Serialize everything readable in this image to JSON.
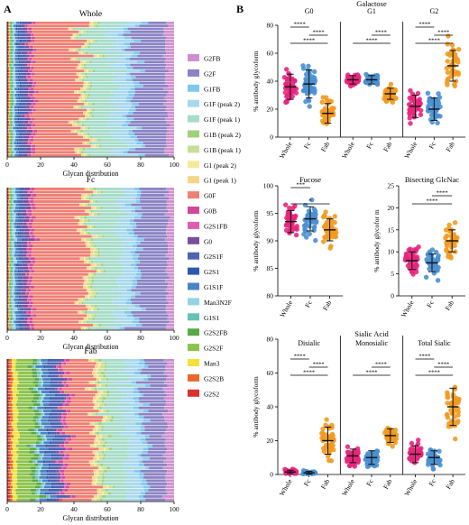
{
  "panel_labels": {
    "a": "A",
    "b": "B"
  },
  "colors": {
    "G2FB": "#cf8fcf",
    "G2F": "#8a83c4",
    "G1FB": "#7fc8ee",
    "G1F (peak 2)": "#a8d8ee",
    "G1F (peak 1)": "#a6dcc8",
    "G1B (peak 2)": "#9fd07a",
    "G1B (peak 1)": "#c7df93",
    "G1 (peak 2)": "#f6ea9a",
    "G1 (peak 1)": "#f4d688",
    "G0F": "#ee7f74",
    "G0B": "#d2479a",
    "G2S1FB": "#e05cb4",
    "G0": "#7a4f9a",
    "G2S1F": "#4a63b3",
    "G2S1": "#2f58ad",
    "G1S1F": "#4b84c4",
    "Man3N2F": "#93d3e6",
    "G1S1": "#66c2b5",
    "G2S2FB": "#5aa845",
    "G2S2F": "#8bc34a",
    "Man3": "#f3e03a",
    "G2S2B": "#e9672e",
    "G2S2": "#d92f2f",
    "whole": "#e8267c",
    "fc": "#4a90d2",
    "fab": "#f29a1f",
    "bar": "#111111"
  },
  "chart_data": [
    {
      "type": "bar",
      "orientation": "horizontal",
      "stacked": true,
      "title": "Whole",
      "xlabel": "Glycan distribution",
      "ylabel": "",
      "xlim": [
        0,
        100
      ],
      "xticks": [
        "0",
        "20",
        "40",
        "60",
        "80",
        "100"
      ],
      "rows": 45,
      "mean_percent_composition": {
        "G2S2": 0.7,
        "G2S2B": 0.4,
        "Man3": 0.2,
        "G2S2F": 0.8,
        "G2S2FB": 0.5,
        "G1S1": 0.7,
        "Man3N2F": 1.2,
        "G1S1F": 1.7,
        "G2S1": 0.8,
        "G2S1F": 3.2,
        "G0": 2.6,
        "G2S1FB": 0.8,
        "G0B": 1.6,
        "G0F": 27.4,
        "G1 (peak 1)": 1.6,
        "G1 (peak 2)": 0.8,
        "G1B (peak 1)": 2.0,
        "G1B (peak 2)": 1.0,
        "G1F (peak 1)": 14.5,
        "G1F (peak 2)": 8.0,
        "G1FB": 3.2,
        "G2F": 18.0,
        "G2FB": 4.4
      }
    },
    {
      "type": "bar",
      "orientation": "horizontal",
      "stacked": true,
      "title": "Fc",
      "xlabel": "Glycan distribution",
      "ylabel": "",
      "xlim": [
        0,
        100
      ],
      "xticks": [
        "0",
        "20",
        "40",
        "60",
        "80",
        "100"
      ],
      "rows": 45,
      "mean_percent_composition": {
        "G2S2": 0.6,
        "G2S2B": 0.4,
        "Man3": 0.2,
        "G2S2F": 0.6,
        "G2S2FB": 0.4,
        "G1S1": 0.8,
        "Man3N2F": 1.5,
        "G1S1F": 1.9,
        "G2S1": 0.6,
        "G2S1F": 2.3,
        "G0": 2.9,
        "G2S1FB": 0.9,
        "G0B": 1.7,
        "G0F": 29.8,
        "G1 (peak 1)": 1.7,
        "G1 (peak 2)": 0.8,
        "G1B (peak 1)": 2.1,
        "G1B (peak 2)": 1.0,
        "G1F (peak 1)": 15.0,
        "G1F (peak 2)": 7.5,
        "G1FB": 3.0,
        "G2F": 17.0,
        "G2FB": 4.1
      }
    },
    {
      "type": "bar",
      "orientation": "horizontal",
      "stacked": true,
      "title": "Fab",
      "xlabel": "Glycan distribution",
      "ylabel": "",
      "xlim": [
        0,
        100
      ],
      "xticks": [
        "0",
        "20",
        "40",
        "60",
        "80",
        "100"
      ],
      "rows": 45,
      "mean_percent_composition": {
        "G2S2": 1.5,
        "G2S2B": 1.5,
        "Man3": 3.0,
        "G2S2F": 9.0,
        "G2S2FB": 3.0,
        "G1S1": 1.5,
        "Man3N2F": 1.0,
        "G1S1F": 4.0,
        "G2S1": 1.0,
        "G2S1F": 5.0,
        "G0": 1.5,
        "G2S1FB": 1.0,
        "G0B": 2.0,
        "G0F": 15.0,
        "G1 (peak 1)": 2.0,
        "G1 (peak 2)": 1.0,
        "G1B (peak 1)": 2.5,
        "G1B (peak 2)": 1.5,
        "G1F (peak 1)": 12.0,
        "G1F (peak 2)": 8.0,
        "G1FB": 3.0,
        "G2F": 12.0,
        "G2FB": 5.0
      }
    },
    {
      "type": "scatter",
      "subtype": "dot-plot-mean-sd",
      "title": "Galactose",
      "ylabel": "% antibody glycoform",
      "ylim": [
        0,
        80
      ],
      "yticks": [
        "0",
        "20",
        "40",
        "60",
        "80"
      ],
      "categories": [
        "Whole",
        "Fc",
        "Fab"
      ],
      "facets": [
        {
          "label": "G0",
          "means": [
            36,
            38,
            17
          ],
          "sd": [
            9,
            10,
            7
          ],
          "n": 45,
          "significance": [
            {
              "pair": [
                "Whole",
                "Fc"
              ],
              "stars": "****"
            },
            {
              "pair": [
                "Fc",
                "Fab"
              ],
              "stars": "****"
            },
            {
              "pair": [
                "Whole",
                "Fab"
              ],
              "stars": "****"
            }
          ]
        },
        {
          "label": "G1",
          "means": [
            41,
            41,
            31
          ],
          "sd": [
            3,
            3,
            4
          ],
          "n": 45,
          "significance": [
            {
              "pair": [
                "Fc",
                "Fab"
              ],
              "stars": "****"
            },
            {
              "pair": [
                "Whole",
                "Fab"
              ],
              "stars": "****"
            }
          ]
        },
        {
          "label": "G2",
          "means": [
            22,
            20,
            51
          ],
          "sd": [
            8,
            8,
            11
          ],
          "n": 45,
          "significance": [
            {
              "pair": [
                "Whole",
                "Fc"
              ],
              "stars": "****"
            },
            {
              "pair": [
                "Fc",
                "Fab"
              ],
              "stars": "****"
            },
            {
              "pair": [
                "Whole",
                "Fab"
              ],
              "stars": "****"
            }
          ]
        }
      ]
    },
    {
      "type": "scatter",
      "subtype": "dot-plot-mean-sd",
      "title": "Fucose",
      "ylabel": "% antibody glycoform",
      "ylim": [
        80,
        100
      ],
      "yticks": [
        "80",
        "85",
        "90",
        "95",
        "100"
      ],
      "categories": [
        "Whole",
        "Fc",
        "Fab"
      ],
      "facets": [
        {
          "label": "",
          "means": [
            93.5,
            94,
            92
          ],
          "sd": [
            2,
            2.2,
            2
          ],
          "n": 45,
          "significance": [
            {
              "pair": [
                "Whole",
                "Fc"
              ],
              "stars": "***"
            },
            {
              "pair": [
                "Whole",
                "Fab"
              ],
              "stars": "*"
            }
          ]
        }
      ]
    },
    {
      "type": "scatter",
      "subtype": "dot-plot-mean-sd",
      "title": "Bisecting GlcNac",
      "ylabel": "% antibody glycofor m",
      "ylim": [
        0,
        25
      ],
      "yticks": [
        "0",
        "5",
        "10",
        "15",
        "20",
        "25"
      ],
      "categories": [
        "Whole",
        "Fc",
        "Fab"
      ],
      "facets": [
        {
          "label": "",
          "means": [
            8,
            7.5,
            12.5
          ],
          "sd": [
            2,
            2,
            2.5
          ],
          "n": 45,
          "significance": [
            {
              "pair": [
                "Fc",
                "Fab"
              ],
              "stars": "****"
            },
            {
              "pair": [
                "Whole",
                "Fab"
              ],
              "stars": "****"
            }
          ]
        }
      ]
    },
    {
      "type": "scatter",
      "subtype": "dot-plot-mean-sd",
      "title": "Sialic Acid",
      "ylabel": "% antibody glycoform",
      "ylim": [
        0,
        80
      ],
      "yticks": [
        "0",
        "20",
        "40",
        "60",
        "80"
      ],
      "categories": [
        "Whole",
        "Fc",
        "Fab"
      ],
      "facets": [
        {
          "label": "Disialic",
          "means": [
            1.5,
            1,
            20
          ],
          "sd": [
            1,
            0.8,
            8
          ],
          "n": 45,
          "significance": [
            {
              "pair": [
                "Whole",
                "Fc"
              ],
              "stars": "****"
            },
            {
              "pair": [
                "Fc",
                "Fab"
              ],
              "stars": "****"
            },
            {
              "pair": [
                "Whole",
                "Fab"
              ],
              "stars": "****"
            }
          ]
        },
        {
          "label": "Monosialic",
          "means": [
            11,
            10,
            23
          ],
          "sd": [
            4,
            4,
            4
          ],
          "n": 45,
          "significance": [
            {
              "pair": [
                "Fc",
                "Fab"
              ],
              "stars": "****"
            },
            {
              "pair": [
                "Whole",
                "Fab"
              ],
              "stars": "****"
            }
          ]
        },
        {
          "label": "Total Sialic",
          "means": [
            12,
            10,
            40
          ],
          "sd": [
            5,
            4,
            11
          ],
          "n": 45,
          "significance": [
            {
              "pair": [
                "Whole",
                "Fc"
              ],
              "stars": "****"
            },
            {
              "pair": [
                "Fc",
                "Fab"
              ],
              "stars": "****"
            },
            {
              "pair": [
                "Whole",
                "Fab"
              ],
              "stars": "****"
            }
          ]
        }
      ]
    }
  ],
  "legend_entries": [
    "G2FB",
    "G2F",
    "G1FB",
    "G1F (peak 2)",
    "G1F (peak 1)",
    "G1B (peak 2)",
    "G1B (peak 1)",
    "G1 (peak 2)",
    "G1 (peak 1)",
    "G0F",
    "G0B",
    "G2S1FB",
    "G0",
    "G2S1F",
    "G2S1",
    "G1S1F",
    "Man3N2F",
    "G1S1",
    "G2S2FB",
    "G2S2F",
    "Man3",
    "G2S2B",
    "G2S2"
  ]
}
